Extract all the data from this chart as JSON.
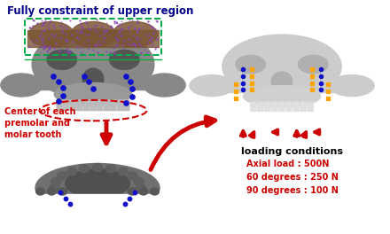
{
  "bg_color": "#ffffff",
  "label_top": "Fully constraint of upper region",
  "label_top_color": "#00008B",
  "label_left": "Center of each\npremolar and\nmolar tooth",
  "label_left_color": "#cc0000",
  "title": "loading conditions",
  "title_color": "#000000",
  "load_lines": [
    "Axial load : 500N",
    "60 degrees : 250 N",
    "90 degrees : 100 N"
  ],
  "load_color": "#cc0000",
  "arrow_red": "#cc0000",
  "dashed_box_color": "#00aa44",
  "dashed_ellipse_color": "#cc0000",
  "dot_blue": "#1111cc",
  "dot_orange": "#FFA500",
  "skull_gray": "#888888",
  "skull_dark": "#555555",
  "skull_light": "#cccccc",
  "skull_right_color": "#c8c8c8",
  "purple_color": "#8844aa",
  "brown_color": "#7B5533",
  "jaw_color": "#707070"
}
